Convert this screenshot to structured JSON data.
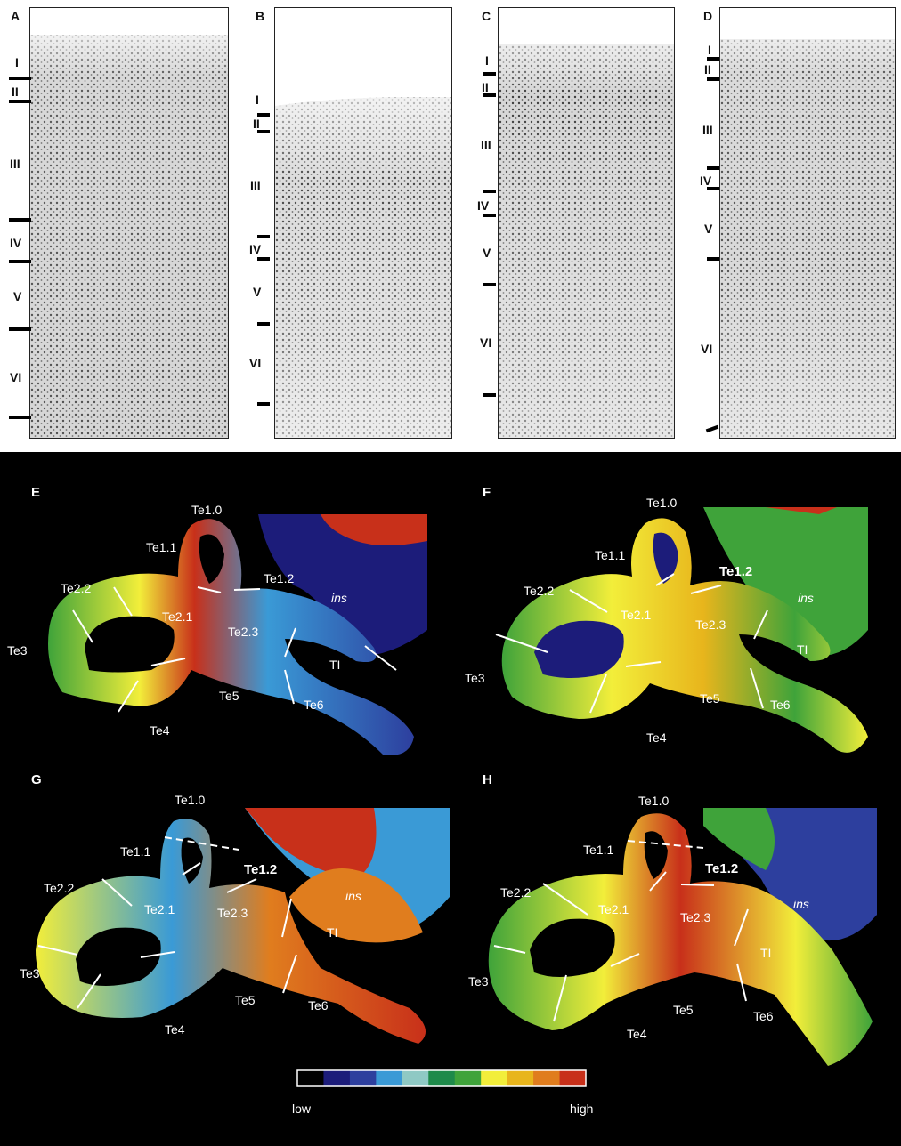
{
  "panels_top": [
    {
      "label": "A",
      "layers": [
        "I",
        "II",
        "III",
        "IV",
        "V",
        "VI"
      ]
    },
    {
      "label": "B",
      "layers": [
        "I",
        "II",
        "III",
        "IV",
        "V",
        "VI"
      ]
    },
    {
      "label": "C",
      "layers": [
        "I",
        "II",
        "III",
        "IV",
        "V",
        "VI"
      ]
    },
    {
      "label": "D",
      "layers": [
        "I",
        "II",
        "III",
        "IV",
        "V",
        "VI"
      ]
    }
  ],
  "panels_bottom": [
    {
      "label": "E",
      "regions": [
        "Te1.0",
        "Te1.1",
        "Te1.2",
        "Te2.2",
        "Te2.1",
        "Te2.3",
        "ins",
        "Te3",
        "TI",
        "Te5",
        "Te6",
        "Te4"
      ]
    },
    {
      "label": "F",
      "regions": [
        "Te1.0",
        "Te1.1",
        "Te1.2",
        "Te2.2",
        "Te2.1",
        "Te2.3",
        "ins",
        "Te3",
        "TI",
        "Te5",
        "Te6",
        "Te4"
      ]
    },
    {
      "label": "G",
      "regions": [
        "Te1.0",
        "Te1.1",
        "Te1.2",
        "Te2.2",
        "Te2.1",
        "Te2.3",
        "ins",
        "Te3",
        "TI",
        "Te5",
        "Te6",
        "Te4"
      ]
    },
    {
      "label": "H",
      "regions": [
        "Te1.0",
        "Te1.1",
        "Te1.2",
        "Te2.2",
        "Te2.1",
        "Te2.3",
        "ins",
        "Te3",
        "TI",
        "Te5",
        "Te6",
        "Te4"
      ]
    }
  ],
  "colorbar": {
    "low_label": "low",
    "high_label": "high",
    "colors": [
      "#000000",
      "#1c1c7a",
      "#2d3f9e",
      "#3a9ad6",
      "#8fc9c4",
      "#1e8a4a",
      "#3fa33a",
      "#f2ee3a",
      "#e8b51c",
      "#e07d1e",
      "#c8301a"
    ]
  }
}
